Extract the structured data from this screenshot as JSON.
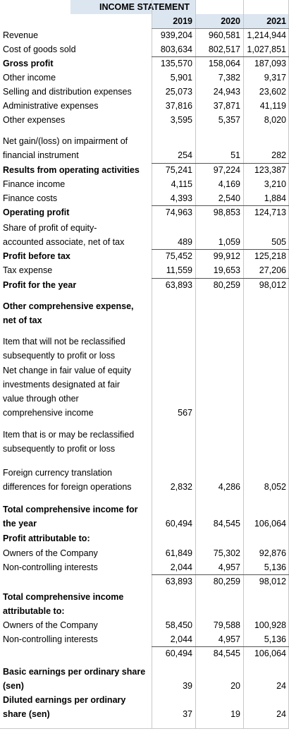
{
  "header": {
    "title": "INCOME STATEMENT",
    "columns": [
      "2019",
      "2020",
      "2021"
    ]
  },
  "rows": [
    {
      "label": [
        "Revenue"
      ],
      "values": [
        "939,204",
        "960,581",
        "1,214,944"
      ]
    },
    {
      "label": [
        "Cost of goods sold"
      ],
      "values": [
        "803,634",
        "802,517",
        "1,027,851"
      ]
    },
    {
      "label": [
        "Gross profit"
      ],
      "values": [
        "135,570",
        "158,064",
        "187,093"
      ],
      "bold": true
    },
    {
      "label": [
        "Other income"
      ],
      "values": [
        "5,901",
        "7,382",
        "9,317"
      ]
    },
    {
      "label": [
        "Selling and distribution expenses"
      ],
      "values": [
        "25,073",
        "24,943",
        "23,602"
      ]
    },
    {
      "label": [
        "Administrative expenses"
      ],
      "values": [
        "37,816",
        "37,871",
        "41,119"
      ]
    },
    {
      "label": [
        "Other expenses"
      ],
      "values": [
        "3,595",
        "5,357",
        "8,020"
      ]
    },
    {
      "label": [
        "Net gain/(loss) on impairment of",
        "financial instrument"
      ],
      "values": [
        "254",
        "51",
        "282"
      ]
    },
    {
      "label": [
        "Results from operating activities"
      ],
      "values": [
        "75,241",
        "97,224",
        "123,387"
      ],
      "bold": true
    },
    {
      "label": [
        "Finance income"
      ],
      "values": [
        "4,115",
        "4,169",
        "3,210"
      ]
    },
    {
      "label": [
        "Finance costs"
      ],
      "values": [
        "4,393",
        "2,540",
        "1,884"
      ]
    },
    {
      "label": [
        "Operating profit"
      ],
      "values": [
        "74,963",
        "98,853",
        "124,713"
      ],
      "bold": true
    },
    {
      "label": [
        "Share of profit of equity-",
        "accounted associate, net of tax"
      ],
      "values": [
        "489",
        "1,059",
        "505"
      ]
    },
    {
      "label": [
        "Profit before tax"
      ],
      "values": [
        "75,452",
        "99,912",
        "125,218"
      ],
      "bold": true
    },
    {
      "label": [
        "Tax expense"
      ],
      "values": [
        "11,559",
        "19,653",
        "27,206"
      ]
    },
    {
      "label": [
        "Profit for the year"
      ],
      "values": [
        "63,893",
        "80,259",
        "98,012"
      ],
      "bold": true
    },
    {
      "label": [
        "Other comprehensive expense,",
        "net of tax"
      ],
      "values": null,
      "bold": true
    },
    {
      "label": [
        "Item that will not be reclassified",
        "subsequently to profit or loss"
      ],
      "values": null
    },
    {
      "label": [
        "Net change in fair value of equity",
        "investments designated at fair",
        "value through other",
        "comprehensive income"
      ],
      "values": [
        "567",
        null,
        null
      ]
    },
    {
      "label": [
        "Item that is or may be reclassified",
        "subsequently to profit or loss"
      ],
      "values": null
    },
    {
      "label": [
        "Foreign currency translation",
        "differences for foreign operations"
      ],
      "values": [
        "2,832",
        "4,286",
        "8,052"
      ]
    },
    {
      "label": [
        "Total comprehensive income for",
        "the year"
      ],
      "values": [
        "60,494",
        "84,545",
        "106,064"
      ],
      "bold": true
    },
    {
      "label": [
        "Profit attributable to:"
      ],
      "values": null,
      "bold": true
    },
    {
      "label": [
        "Owners of the Company"
      ],
      "values": [
        "61,849",
        "75,302",
        "92,876"
      ]
    },
    {
      "label": [
        "Non-controlling interests"
      ],
      "values": [
        "2,044",
        "4,957",
        "5,136"
      ]
    },
    {
      "label": null,
      "values": [
        "63,893",
        "80,259",
        "98,012"
      ]
    },
    {
      "label": [
        "Total comprehensive income",
        "attributable to:"
      ],
      "values": null,
      "bold": true
    },
    {
      "label": [
        "Owners of the Company"
      ],
      "values": [
        "58,450",
        "79,588",
        "100,928"
      ]
    },
    {
      "label": [
        "Non-controlling interests"
      ],
      "values": [
        "2,044",
        "4,957",
        "5,136"
      ]
    },
    {
      "label": null,
      "values": [
        "60,494",
        "84,545",
        "106,064"
      ]
    },
    {
      "label": [
        "Basic earnings per ordinary share",
        "(sen)"
      ],
      "values": [
        "39",
        "20",
        "24"
      ],
      "bold": true
    },
    {
      "label": [
        "Diluted earnings per ordinary",
        "share (sen)"
      ],
      "values": [
        "37",
        "19",
        "24"
      ],
      "bold": true
    }
  ]
}
